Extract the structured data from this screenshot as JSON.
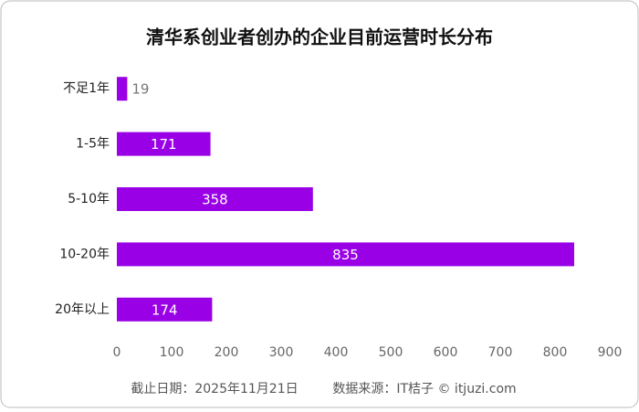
{
  "chart_data": {
    "type": "barh",
    "title": "清华系创业者创办的企业目前运营时长分布",
    "categories": [
      "不足1年",
      "1-5年",
      "5-10年",
      "10-20年",
      "20年以上"
    ],
    "values": [
      19,
      171,
      358,
      835,
      174
    ],
    "color": "#9900e6",
    "xlim": [
      0,
      900
    ],
    "xticks": [
      0,
      100,
      200,
      300,
      400,
      500,
      600,
      700,
      800,
      900
    ],
    "footer": [
      "截止日期：2025年11月21日",
      "数据来源：IT桔子 © itjuzi.com"
    ]
  }
}
